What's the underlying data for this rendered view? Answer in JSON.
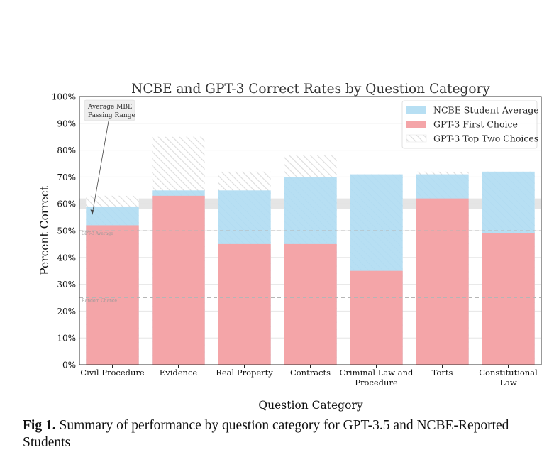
{
  "chart_data": {
    "type": "bar",
    "title": "NCBE and GPT-3 Correct Rates by Question Category",
    "xlabel": "Question Category",
    "ylabel": "Percent Correct",
    "ylim": [
      0,
      100
    ],
    "yticks": [
      "0%",
      "10%",
      "20%",
      "30%",
      "40%",
      "50%",
      "60%",
      "70%",
      "80%",
      "90%",
      "100%"
    ],
    "grid": true,
    "legend_position": "top-right",
    "categories": [
      [
        "Civil Procedure"
      ],
      [
        "Evidence"
      ],
      [
        "Real Property"
      ],
      [
        "Contracts"
      ],
      [
        "Criminal Law and",
        "Procedure"
      ],
      [
        "Torts"
      ],
      [
        "Constitutional",
        "Law"
      ]
    ],
    "series": [
      {
        "name": "NCBE Student Average",
        "color": "#b7dff3",
        "values": [
          59,
          65,
          65,
          70,
          71,
          71,
          72
        ]
      },
      {
        "name": "GPT-3 First Choice",
        "color": "#f4a5a8",
        "values": [
          52,
          63,
          45,
          45,
          35,
          62,
          49
        ]
      },
      {
        "name": "GPT-3 Top Two Choices",
        "color": "#e3e3e3",
        "values": [
          63,
          85,
          72,
          78,
          71,
          72,
          72
        ]
      }
    ],
    "reference_lines": [
      {
        "label": "GPT-3 Average",
        "value": 50
      },
      {
        "label": "Random Chance",
        "value": 25
      }
    ],
    "passing_band": {
      "from": 58,
      "to": 62
    },
    "annotation": {
      "lines": [
        "Average MBE",
        "Passing Range"
      ],
      "points_to": {
        "category_index": 0,
        "value": 61
      }
    }
  },
  "caption": {
    "label": "Fig 1.",
    "text": "Summary of performance by question category for GPT-3.5 and NCBE-Reported Students"
  }
}
